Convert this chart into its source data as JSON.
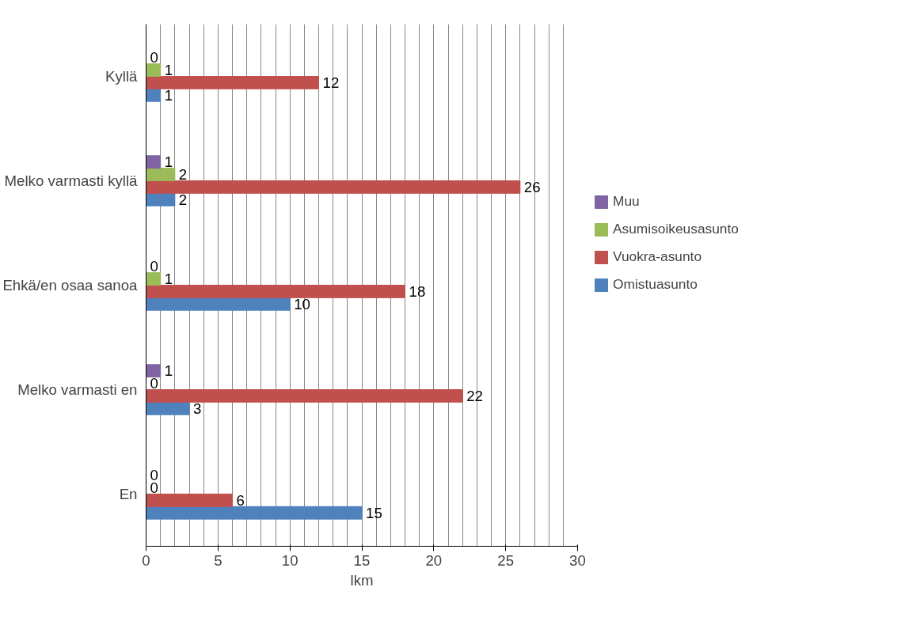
{
  "chart_data": {
    "type": "bar",
    "orientation": "horizontal",
    "xlabel": "lkm",
    "categories": [
      "Kyllä",
      "Melko varmasti kyllä",
      "Ehkä/en osaa sanoa",
      "Melko varmasti en",
      "En"
    ],
    "series": [
      {
        "name": "Omistuasunto",
        "color": "#4f81bd",
        "values": [
          1,
          2,
          10,
          3,
          15
        ]
      },
      {
        "name": "Vuokra-asunto",
        "color": "#c0504d",
        "values": [
          12,
          26,
          18,
          22,
          6
        ]
      },
      {
        "name": "Asumisoikeusasunto",
        "color": "#9bbb59",
        "values": [
          1,
          2,
          1,
          0,
          0
        ]
      },
      {
        "name": "Muu",
        "color": "#8064a2",
        "values": [
          0,
          1,
          0,
          1,
          0
        ]
      }
    ],
    "xlim": [
      0,
      30
    ],
    "xticks": [
      0,
      5,
      10,
      15,
      20,
      25,
      30
    ],
    "grid": "x",
    "legend": "right",
    "data_labels": true
  }
}
